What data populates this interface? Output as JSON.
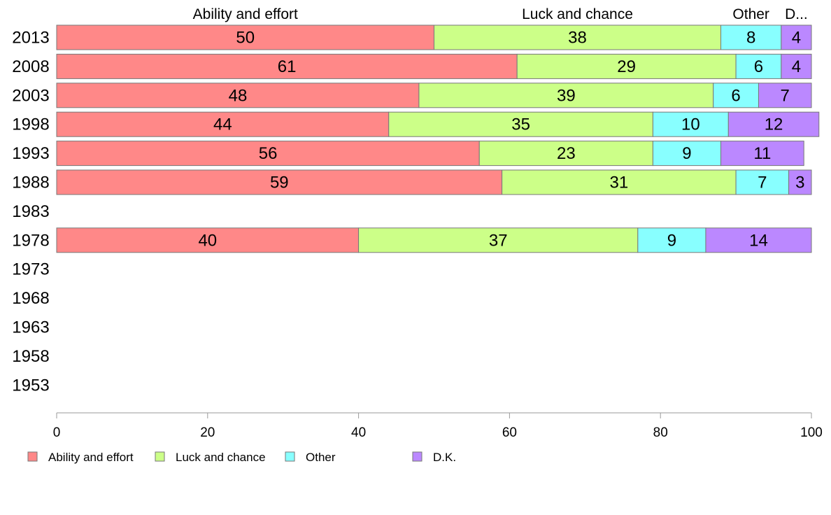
{
  "chart_data": {
    "type": "bar",
    "orientation": "horizontal",
    "stacked": true,
    "categories": [
      "2013",
      "2008",
      "2003",
      "1998",
      "1993",
      "1988",
      "1983",
      "1978",
      "1973",
      "1968",
      "1963",
      "1958",
      "1953"
    ],
    "series": [
      {
        "name": "Ability and effort",
        "color": "#ff8888",
        "values": [
          50,
          61,
          48,
          44,
          56,
          59,
          null,
          40,
          null,
          null,
          null,
          null,
          null
        ]
      },
      {
        "name": "Luck and chance",
        "color": "#ccff88",
        "values": [
          38,
          29,
          39,
          35,
          23,
          31,
          null,
          37,
          null,
          null,
          null,
          null,
          null
        ]
      },
      {
        "name": "Other",
        "color": "#88ffff",
        "values": [
          8,
          6,
          6,
          10,
          9,
          7,
          null,
          9,
          null,
          null,
          null,
          null,
          null
        ]
      },
      {
        "name": "D.K.",
        "color": "#bb88ff",
        "values": [
          4,
          4,
          7,
          12,
          11,
          3,
          null,
          14,
          null,
          null,
          null,
          null,
          null
        ]
      }
    ],
    "column_headers": [
      "Ability and effort",
      "Luck and chance",
      "Other",
      "D..."
    ],
    "xlim": [
      0,
      100
    ],
    "xticks": [
      "0",
      "20",
      "40",
      "60",
      "80",
      "100"
    ],
    "grid": false,
    "legend_position": "bottom-left"
  }
}
